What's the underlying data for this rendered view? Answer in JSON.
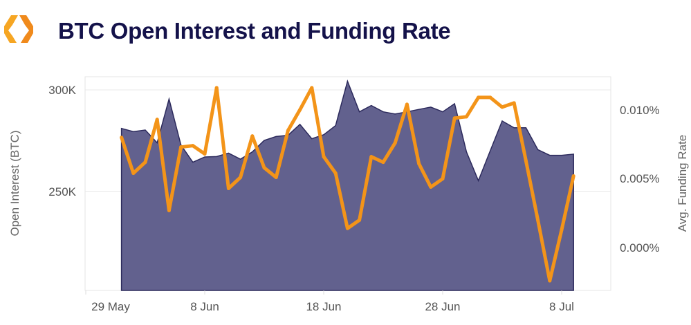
{
  "header": {
    "title": "BTC Open Interest and Funding Rate",
    "logo_icon": "orange-hexagon-logo-icon"
  },
  "colors": {
    "open_interest_fill": "#62618e",
    "open_interest_line": "#2c2a5c",
    "funding_rate_line": "#f39419",
    "title": "#14124a"
  },
  "chart_data": {
    "type": "area+line",
    "title": "BTC Open Interest and Funding Rate",
    "xlabel": "",
    "ylabel_left": "Open Interest (BTC)",
    "ylabel_right": "Avg. Funding Rate",
    "x_ticks": [
      "29 May",
      "8 Jun",
      "18 Jun",
      "28 Jun",
      "8 Jul"
    ],
    "y_left_ticks": [
      "250K",
      "300K"
    ],
    "y_right_ticks": [
      "0.000%",
      "0.005%",
      "0.010%"
    ],
    "ylim_left": [
      201000,
      306500
    ],
    "ylim_right": [
      -0.0031,
      0.0124
    ],
    "grid": true,
    "legend": "none",
    "x": [
      "1 Jun",
      "2 Jun",
      "3 Jun",
      "4 Jun",
      "5 Jun",
      "6 Jun",
      "7 Jun",
      "8 Jun",
      "9 Jun",
      "10 Jun",
      "11 Jun",
      "12 Jun",
      "13 Jun",
      "14 Jun",
      "15 Jun",
      "16 Jun",
      "17 Jun",
      "18 Jun",
      "19 Jun",
      "20 Jun",
      "21 Jun",
      "22 Jun",
      "23 Jun",
      "24 Jun",
      "25 Jun",
      "26 Jun",
      "27 Jun",
      "28 Jun",
      "29 Jun",
      "30 Jun",
      "1 Jul",
      "2 Jul",
      "3 Jul",
      "4 Jul",
      "5 Jul",
      "6 Jul",
      "7 Jul",
      "8 Jul",
      "9 Jul"
    ],
    "series": [
      {
        "axis": "left",
        "type": "area",
        "values": [
          281000,
          279400,
          280200,
          273900,
          295500,
          272800,
          264300,
          266900,
          267100,
          268800,
          265800,
          269400,
          275100,
          277000,
          277600,
          283000,
          275900,
          277900,
          282400,
          304300,
          289200,
          292300,
          289200,
          288100,
          289200,
          290400,
          291500,
          289200,
          293200,
          269400,
          255200,
          270000,
          284700,
          281300,
          281300,
          270500,
          267700,
          267700,
          268300
        ]
      },
      {
        "axis": "right",
        "type": "line",
        "values": [
          0.008,
          0.0054,
          0.0062,
          0.0093,
          0.0027,
          0.0073,
          0.0074,
          0.0068,
          0.0116,
          0.0043,
          0.0051,
          0.0081,
          0.0058,
          0.0051,
          0.0085,
          0.01,
          0.0116,
          0.0066,
          0.0054,
          0.0014,
          0.002,
          0.0066,
          0.0062,
          0.0076,
          0.0104,
          0.0061,
          0.0044,
          0.005,
          0.0094,
          0.0095,
          0.0109,
          0.0109,
          0.0102,
          0.0105,
          0.0063,
          0.002,
          -0.0024,
          0.0013,
          0.0052
        ]
      }
    ]
  }
}
